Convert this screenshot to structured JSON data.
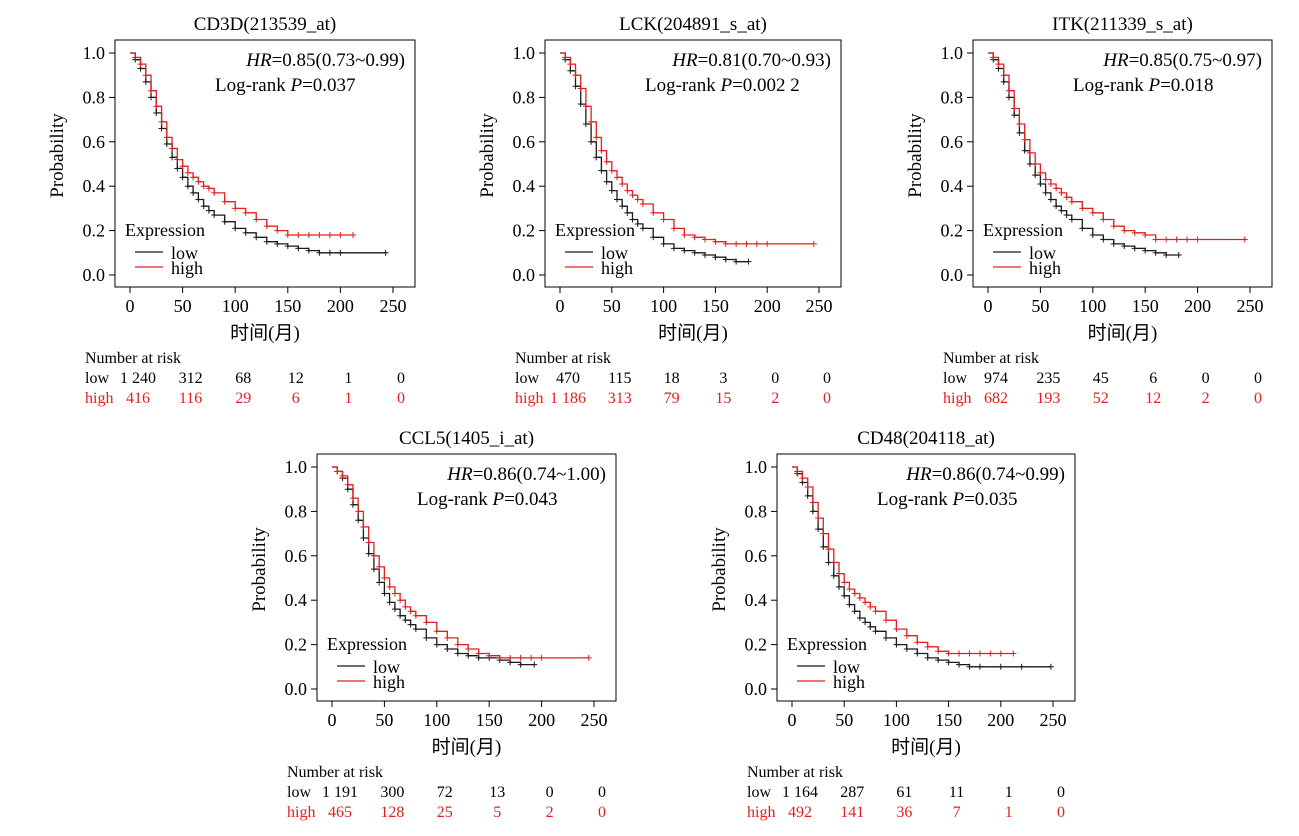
{
  "xlabel": "时间(月)",
  "ylabel": "Probability",
  "legend_title": "Expression",
  "risk_title": "Number at risk",
  "colors": {
    "low": "#1a1a1a",
    "high": "#e02020",
    "axis": "#000000"
  },
  "chart_data": [
    {
      "type": "line",
      "title": "CD3D(213539_at)",
      "annotation_hr": "HR=0.85(0.73~0.99)",
      "annotation_p": "Log-rank P=0.037",
      "xlim": [
        0,
        250
      ],
      "ylim": [
        0,
        1
      ],
      "xticks": [
        "0",
        "50",
        "100",
        "150",
        "200",
        "250"
      ],
      "yticks": [
        "0.0",
        "0.2",
        "0.4",
        "0.6",
        "0.8",
        "1.0"
      ],
      "series": [
        {
          "name": "low",
          "x": [
            0,
            5,
            10,
            15,
            20,
            25,
            30,
            35,
            40,
            45,
            50,
            55,
            60,
            65,
            70,
            75,
            80,
            90,
            100,
            110,
            120,
            130,
            140,
            150,
            160,
            170,
            180,
            190,
            200,
            243
          ],
          "y": [
            1,
            0.97,
            0.93,
            0.87,
            0.8,
            0.73,
            0.66,
            0.59,
            0.53,
            0.48,
            0.44,
            0.4,
            0.37,
            0.34,
            0.31,
            0.29,
            0.27,
            0.24,
            0.21,
            0.19,
            0.17,
            0.15,
            0.14,
            0.13,
            0.12,
            0.11,
            0.1,
            0.1,
            0.1,
            0.1
          ]
        },
        {
          "name": "high",
          "x": [
            0,
            5,
            10,
            15,
            20,
            25,
            30,
            35,
            40,
            45,
            50,
            55,
            60,
            65,
            70,
            75,
            80,
            90,
            100,
            110,
            120,
            130,
            140,
            150,
            160,
            170,
            180,
            190,
            200,
            212
          ],
          "y": [
            1,
            0.98,
            0.95,
            0.9,
            0.83,
            0.76,
            0.69,
            0.62,
            0.57,
            0.52,
            0.49,
            0.46,
            0.44,
            0.42,
            0.4,
            0.39,
            0.37,
            0.33,
            0.3,
            0.28,
            0.25,
            0.22,
            0.2,
            0.18,
            0.18,
            0.18,
            0.18,
            0.18,
            0.18,
            0.18
          ]
        }
      ],
      "risk_table": {
        "low": [
          "1 240",
          "312",
          "68",
          "12",
          "1",
          "0"
        ],
        "high": [
          "416",
          "116",
          "29",
          "6",
          "1",
          "0"
        ]
      }
    },
    {
      "type": "line",
      "title": "LCK(204891_s_at)",
      "annotation_hr": "HR=0.81(0.70~0.93)",
      "annotation_p": "Log-rank P=0.002 2",
      "xlim": [
        0,
        250
      ],
      "ylim": [
        0,
        1
      ],
      "xticks": [
        "0",
        "50",
        "100",
        "150",
        "200",
        "250"
      ],
      "yticks": [
        "0.0",
        "0.2",
        "0.4",
        "0.6",
        "0.8",
        "1.0"
      ],
      "series": [
        {
          "name": "low",
          "x": [
            0,
            5,
            10,
            15,
            20,
            25,
            30,
            35,
            40,
            45,
            50,
            55,
            60,
            65,
            70,
            75,
            80,
            90,
            100,
            110,
            120,
            130,
            140,
            150,
            160,
            170,
            182
          ],
          "y": [
            1,
            0.97,
            0.92,
            0.85,
            0.77,
            0.68,
            0.6,
            0.53,
            0.47,
            0.42,
            0.38,
            0.34,
            0.31,
            0.28,
            0.25,
            0.23,
            0.21,
            0.17,
            0.14,
            0.12,
            0.11,
            0.1,
            0.09,
            0.08,
            0.07,
            0.06,
            0.06
          ]
        },
        {
          "name": "high",
          "x": [
            0,
            5,
            10,
            15,
            20,
            25,
            30,
            35,
            40,
            45,
            50,
            55,
            60,
            65,
            70,
            75,
            80,
            90,
            100,
            110,
            120,
            130,
            140,
            150,
            160,
            170,
            180,
            190,
            200,
            245
          ],
          "y": [
            1,
            0.98,
            0.95,
            0.9,
            0.84,
            0.76,
            0.69,
            0.62,
            0.56,
            0.51,
            0.47,
            0.44,
            0.41,
            0.38,
            0.36,
            0.34,
            0.32,
            0.28,
            0.25,
            0.21,
            0.18,
            0.17,
            0.16,
            0.15,
            0.14,
            0.14,
            0.14,
            0.14,
            0.14,
            0.14
          ]
        }
      ],
      "risk_table": {
        "low": [
          "470",
          "115",
          "18",
          "3",
          "0",
          "0"
        ],
        "high": [
          "1 186",
          "313",
          "79",
          "15",
          "2",
          "0"
        ]
      }
    },
    {
      "type": "line",
      "title": "ITK(211339_s_at)",
      "annotation_hr": "HR=0.85(0.75~0.97)",
      "annotation_p": "Log-rank P=0.018",
      "xlim": [
        0,
        250
      ],
      "ylim": [
        0,
        1
      ],
      "xticks": [
        "0",
        "50",
        "100",
        "150",
        "200",
        "250"
      ],
      "yticks": [
        "0.0",
        "0.2",
        "0.4",
        "0.6",
        "0.8",
        "1.0"
      ],
      "series": [
        {
          "name": "low",
          "x": [
            0,
            5,
            10,
            15,
            20,
            25,
            30,
            35,
            40,
            45,
            50,
            55,
            60,
            65,
            70,
            75,
            80,
            90,
            100,
            110,
            120,
            130,
            140,
            150,
            160,
            170,
            182
          ],
          "y": [
            1,
            0.97,
            0.93,
            0.87,
            0.8,
            0.72,
            0.64,
            0.56,
            0.5,
            0.45,
            0.41,
            0.37,
            0.34,
            0.31,
            0.29,
            0.27,
            0.25,
            0.21,
            0.18,
            0.16,
            0.14,
            0.13,
            0.12,
            0.11,
            0.1,
            0.09,
            0.09
          ]
        },
        {
          "name": "high",
          "x": [
            0,
            5,
            10,
            15,
            20,
            25,
            30,
            35,
            40,
            45,
            50,
            55,
            60,
            65,
            70,
            75,
            80,
            90,
            100,
            110,
            120,
            130,
            140,
            150,
            160,
            170,
            180,
            190,
            200,
            245
          ],
          "y": [
            1,
            0.98,
            0.95,
            0.9,
            0.83,
            0.75,
            0.68,
            0.61,
            0.55,
            0.5,
            0.46,
            0.43,
            0.41,
            0.39,
            0.37,
            0.35,
            0.33,
            0.3,
            0.28,
            0.25,
            0.22,
            0.2,
            0.19,
            0.18,
            0.16,
            0.16,
            0.16,
            0.16,
            0.16,
            0.16
          ]
        }
      ],
      "risk_table": {
        "low": [
          "974",
          "235",
          "45",
          "6",
          "0",
          "0"
        ],
        "high": [
          "682",
          "193",
          "52",
          "12",
          "2",
          "0"
        ]
      }
    },
    {
      "type": "line",
      "title": "CCL5(1405_i_at)",
      "annotation_hr": "HR=0.86(0.74~1.00)",
      "annotation_p": "Log-rank P=0.043",
      "xlim": [
        0,
        250
      ],
      "ylim": [
        0,
        1
      ],
      "xticks": [
        "0",
        "50",
        "100",
        "150",
        "200",
        "250"
      ],
      "yticks": [
        "0.0",
        "0.2",
        "0.4",
        "0.6",
        "0.8",
        "1.0"
      ],
      "series": [
        {
          "name": "low",
          "x": [
            0,
            5,
            10,
            15,
            20,
            25,
            30,
            35,
            40,
            45,
            50,
            55,
            60,
            65,
            70,
            75,
            80,
            90,
            100,
            110,
            120,
            130,
            140,
            150,
            160,
            170,
            180,
            193
          ],
          "y": [
            1,
            0.98,
            0.95,
            0.9,
            0.83,
            0.76,
            0.68,
            0.61,
            0.54,
            0.48,
            0.43,
            0.39,
            0.36,
            0.33,
            0.31,
            0.29,
            0.27,
            0.23,
            0.2,
            0.18,
            0.16,
            0.15,
            0.14,
            0.14,
            0.13,
            0.12,
            0.11,
            0.11
          ]
        },
        {
          "name": "high",
          "x": [
            0,
            5,
            10,
            15,
            20,
            25,
            30,
            35,
            40,
            45,
            50,
            55,
            60,
            65,
            70,
            75,
            80,
            90,
            100,
            110,
            120,
            130,
            140,
            150,
            160,
            170,
            180,
            190,
            200,
            245
          ],
          "y": [
            1,
            0.98,
            0.96,
            0.92,
            0.86,
            0.8,
            0.73,
            0.66,
            0.6,
            0.55,
            0.5,
            0.46,
            0.43,
            0.4,
            0.37,
            0.35,
            0.33,
            0.3,
            0.26,
            0.23,
            0.2,
            0.18,
            0.16,
            0.15,
            0.14,
            0.14,
            0.14,
            0.14,
            0.14,
            0.14
          ]
        }
      ],
      "risk_table": {
        "low": [
          "1 191",
          "300",
          "72",
          "13",
          "0",
          "0"
        ],
        "high": [
          "465",
          "128",
          "25",
          "5",
          "2",
          "0"
        ]
      }
    },
    {
      "type": "line",
      "title": "CD48(204118_at)",
      "annotation_hr": "HR=0.86(0.74~0.99)",
      "annotation_p": "Log-rank P=0.035",
      "xlim": [
        0,
        250
      ],
      "ylim": [
        0,
        1
      ],
      "xticks": [
        "0",
        "50",
        "100",
        "150",
        "200",
        "250"
      ],
      "yticks": [
        "0.0",
        "0.2",
        "0.4",
        "0.6",
        "0.8",
        "1.0"
      ],
      "series": [
        {
          "name": "low",
          "x": [
            0,
            5,
            10,
            15,
            20,
            25,
            30,
            35,
            40,
            45,
            50,
            55,
            60,
            65,
            70,
            75,
            80,
            90,
            100,
            110,
            120,
            130,
            140,
            150,
            160,
            170,
            180,
            200,
            220,
            248
          ],
          "y": [
            1,
            0.97,
            0.93,
            0.87,
            0.8,
            0.72,
            0.64,
            0.57,
            0.51,
            0.46,
            0.42,
            0.38,
            0.35,
            0.32,
            0.3,
            0.28,
            0.26,
            0.23,
            0.2,
            0.18,
            0.16,
            0.14,
            0.13,
            0.12,
            0.11,
            0.1,
            0.1,
            0.1,
            0.1,
            0.1
          ]
        },
        {
          "name": "high",
          "x": [
            0,
            5,
            10,
            15,
            20,
            25,
            30,
            35,
            40,
            45,
            50,
            55,
            60,
            65,
            70,
            75,
            80,
            90,
            100,
            110,
            120,
            130,
            140,
            150,
            160,
            170,
            180,
            190,
            200,
            212
          ],
          "y": [
            1,
            0.98,
            0.95,
            0.91,
            0.84,
            0.77,
            0.7,
            0.63,
            0.57,
            0.52,
            0.48,
            0.45,
            0.43,
            0.41,
            0.39,
            0.37,
            0.35,
            0.31,
            0.27,
            0.24,
            0.21,
            0.19,
            0.17,
            0.16,
            0.16,
            0.16,
            0.16,
            0.16,
            0.16,
            0.16
          ]
        }
      ],
      "risk_table": {
        "low": [
          "1 164",
          "287",
          "61",
          "11",
          "1",
          "0"
        ],
        "high": [
          "492",
          "141",
          "36",
          "7",
          "1",
          "0"
        ]
      }
    }
  ]
}
